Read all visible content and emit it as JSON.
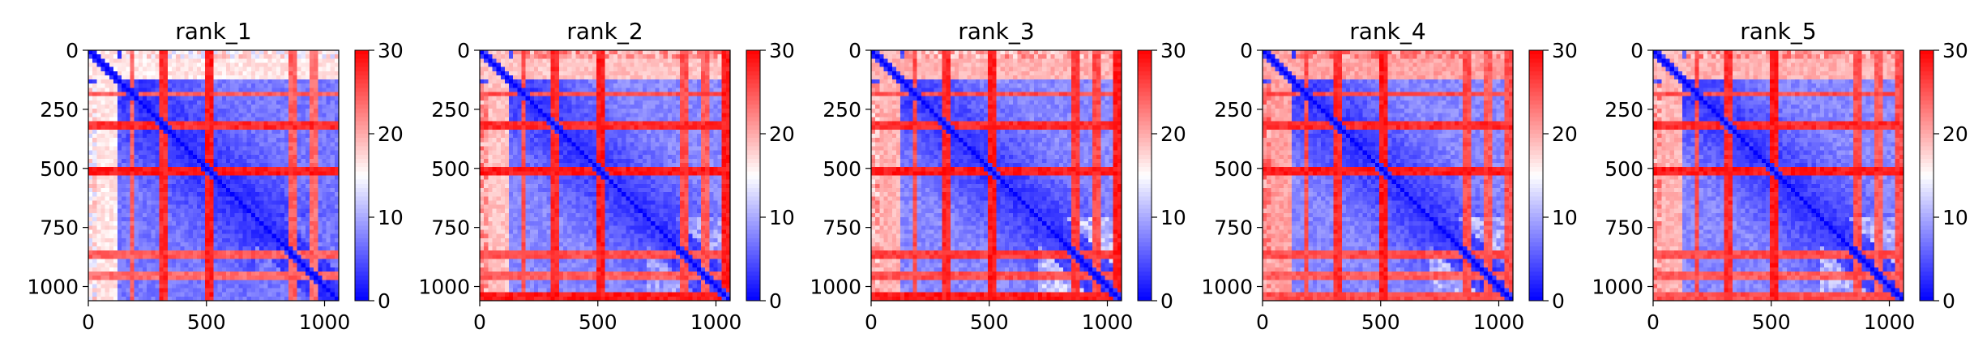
{
  "chart_data": [
    {
      "type": "heatmap",
      "title": "rank_1",
      "matrix_size": 1060,
      "xlim": [
        0,
        1060
      ],
      "ylim": [
        1060,
        0
      ],
      "xticks": [
        0,
        500,
        1000
      ],
      "xtick_labels": [
        "0",
        "500",
        "1000"
      ],
      "yticks": [
        0,
        250,
        500,
        750,
        1000
      ],
      "ytick_labels": [
        "0",
        "250",
        "500",
        "750",
        "1000"
      ],
      "colorbar": {
        "min": 0,
        "max": 30,
        "colormap": "bwr",
        "ticks": [
          0,
          10,
          20,
          30
        ],
        "tick_labels": [
          "0",
          "10",
          "20",
          "30"
        ]
      },
      "high_distance_bands": [
        {
          "start": 40,
          "end": 120,
          "value": 18
        },
        {
          "start": 180,
          "end": 186,
          "value": 26
        },
        {
          "start": 305,
          "end": 325,
          "value": 29
        },
        {
          "start": 500,
          "end": 522,
          "value": 30
        },
        {
          "start": 860,
          "end": 870,
          "value": 26
        },
        {
          "start": 950,
          "end": 960,
          "value": 25
        }
      ],
      "top_region_value": 16,
      "bottom_region_value": 8,
      "background_value": 7
    },
    {
      "type": "heatmap",
      "title": "rank_2",
      "matrix_size": 1060,
      "xlim": [
        0,
        1060
      ],
      "ylim": [
        1060,
        0
      ],
      "xticks": [
        0,
        500,
        1000
      ],
      "xtick_labels": [
        "0",
        "500",
        "1000"
      ],
      "yticks": [
        0,
        250,
        500,
        750,
        1000
      ],
      "ytick_labels": [
        "0",
        "250",
        "500",
        "750",
        "1000"
      ],
      "colorbar": {
        "min": 0,
        "max": 30,
        "colormap": "bwr",
        "ticks": [
          0,
          10,
          20,
          30
        ],
        "tick_labels": [
          "0",
          "10",
          "20",
          "30"
        ]
      },
      "high_distance_bands": [
        {
          "start": 40,
          "end": 120,
          "value": 20
        },
        {
          "start": 180,
          "end": 186,
          "value": 27
        },
        {
          "start": 305,
          "end": 325,
          "value": 29
        },
        {
          "start": 500,
          "end": 522,
          "value": 30
        },
        {
          "start": 860,
          "end": 870,
          "value": 27
        },
        {
          "start": 950,
          "end": 960,
          "value": 26
        },
        {
          "start": 1035,
          "end": 1060,
          "value": 30
        }
      ],
      "top_region_value": 21,
      "bottom_region_value": 11,
      "background_value": 8
    },
    {
      "type": "heatmap",
      "title": "rank_3",
      "matrix_size": 1060,
      "xlim": [
        0,
        1060
      ],
      "ylim": [
        1060,
        0
      ],
      "xticks": [
        0,
        500,
        1000
      ],
      "xtick_labels": [
        "0",
        "500",
        "1000"
      ],
      "yticks": [
        0,
        250,
        500,
        750,
        1000
      ],
      "ytick_labels": [
        "0",
        "250",
        "500",
        "750",
        "1000"
      ],
      "colorbar": {
        "min": 0,
        "max": 30,
        "colormap": "bwr",
        "ticks": [
          0,
          10,
          20,
          30
        ],
        "tick_labels": [
          "0",
          "10",
          "20",
          "30"
        ]
      },
      "high_distance_bands": [
        {
          "start": 40,
          "end": 120,
          "value": 21
        },
        {
          "start": 180,
          "end": 186,
          "value": 27
        },
        {
          "start": 305,
          "end": 325,
          "value": 29
        },
        {
          "start": 500,
          "end": 522,
          "value": 30
        },
        {
          "start": 860,
          "end": 870,
          "value": 28
        },
        {
          "start": 950,
          "end": 960,
          "value": 27
        },
        {
          "start": 1035,
          "end": 1060,
          "value": 30
        }
      ],
      "top_region_value": 20,
      "bottom_region_value": 13,
      "background_value": 8
    },
    {
      "type": "heatmap",
      "title": "rank_4",
      "matrix_size": 1060,
      "xlim": [
        0,
        1060
      ],
      "ylim": [
        1060,
        0
      ],
      "xticks": [
        0,
        500,
        1000
      ],
      "xtick_labels": [
        "0",
        "500",
        "1000"
      ],
      "yticks": [
        0,
        250,
        500,
        750,
        1000
      ],
      "ytick_labels": [
        "0",
        "250",
        "500",
        "750",
        "1000"
      ],
      "colorbar": {
        "min": 0,
        "max": 30,
        "colormap": "bwr",
        "ticks": [
          0,
          10,
          20,
          30
        ],
        "tick_labels": [
          "0",
          "10",
          "20",
          "30"
        ]
      },
      "high_distance_bands": [
        {
          "start": 40,
          "end": 120,
          "value": 22
        },
        {
          "start": 180,
          "end": 186,
          "value": 27
        },
        {
          "start": 305,
          "end": 325,
          "value": 29
        },
        {
          "start": 500,
          "end": 522,
          "value": 30
        },
        {
          "start": 860,
          "end": 870,
          "value": 27
        },
        {
          "start": 950,
          "end": 960,
          "value": 26
        },
        {
          "start": 1035,
          "end": 1060,
          "value": 27
        }
      ],
      "top_region_value": 22,
      "bottom_region_value": 12,
      "background_value": 8
    },
    {
      "type": "heatmap",
      "title": "rank_5",
      "matrix_size": 1060,
      "xlim": [
        0,
        1060
      ],
      "ylim": [
        1060,
        0
      ],
      "xticks": [
        0,
        500,
        1000
      ],
      "xtick_labels": [
        "0",
        "500",
        "1000"
      ],
      "yticks": [
        0,
        250,
        500,
        750,
        1000
      ],
      "ytick_labels": [
        "0",
        "250",
        "500",
        "750",
        "1000"
      ],
      "colorbar": {
        "min": 0,
        "max": 30,
        "colormap": "bwr",
        "ticks": [
          0,
          10,
          20,
          30
        ],
        "tick_labels": [
          "0",
          "10",
          "20",
          "30"
        ]
      },
      "high_distance_bands": [
        {
          "start": 40,
          "end": 120,
          "value": 21
        },
        {
          "start": 180,
          "end": 186,
          "value": 27
        },
        {
          "start": 305,
          "end": 325,
          "value": 29
        },
        {
          "start": 500,
          "end": 522,
          "value": 30
        },
        {
          "start": 860,
          "end": 870,
          "value": 27
        },
        {
          "start": 950,
          "end": 960,
          "value": 26
        },
        {
          "start": 1035,
          "end": 1060,
          "value": 27
        }
      ],
      "top_region_value": 21,
      "bottom_region_value": 12,
      "background_value": 8
    }
  ]
}
